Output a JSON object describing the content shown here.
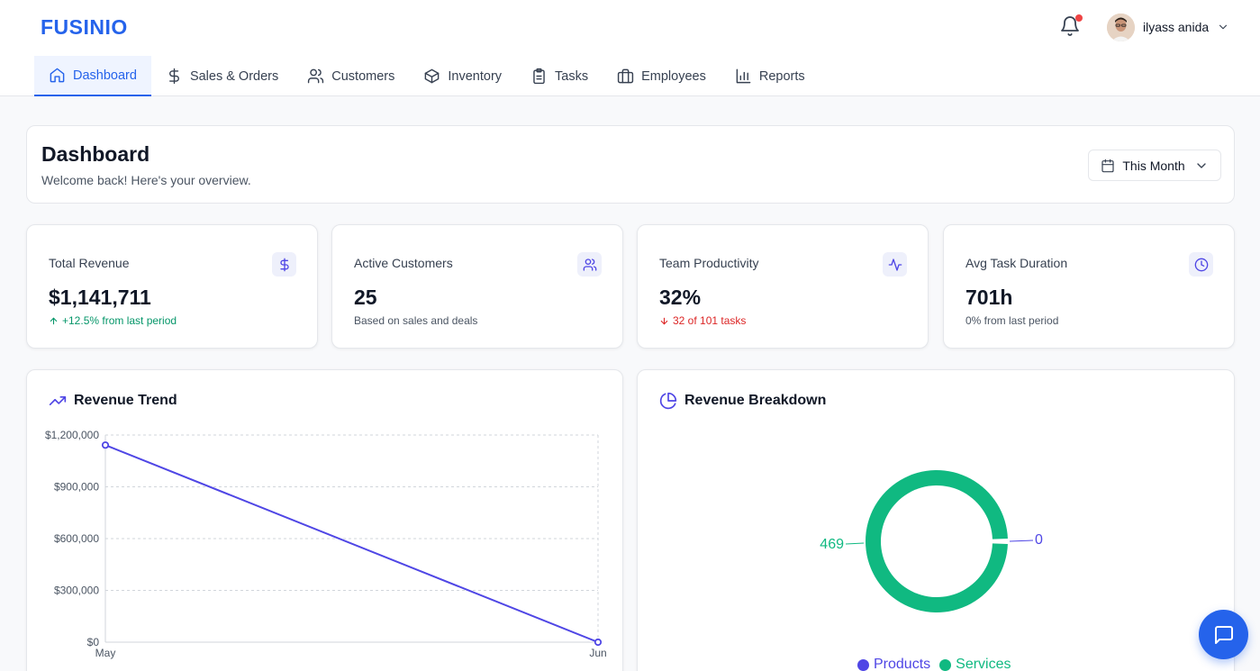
{
  "brand": "FUSINIO",
  "user": {
    "name": "ilyass anida"
  },
  "nav": [
    {
      "label": "Dashboard",
      "icon": "home-icon",
      "active": true
    },
    {
      "label": "Sales & Orders",
      "icon": "dollar-icon"
    },
    {
      "label": "Customers",
      "icon": "users-icon"
    },
    {
      "label": "Inventory",
      "icon": "box-icon"
    },
    {
      "label": "Tasks",
      "icon": "clipboard-icon"
    },
    {
      "label": "Employees",
      "icon": "briefcase-icon"
    },
    {
      "label": "Reports",
      "icon": "bar-chart-icon"
    }
  ],
  "dashboard": {
    "title": "Dashboard",
    "subtitle": "Welcome back! Here's your overview.",
    "range_label": "This Month"
  },
  "stats": [
    {
      "label": "Total Revenue",
      "value": "$1,141,711",
      "note": "+12.5% from last period",
      "trend": "up",
      "icon": "dollar-icon"
    },
    {
      "label": "Active Customers",
      "value": "25",
      "note": "Based on sales and deals",
      "trend": "none",
      "icon": "users-icon"
    },
    {
      "label": "Team Productivity",
      "value": "32%",
      "note": "32 of 101 tasks",
      "trend": "down",
      "icon": "activity-icon"
    },
    {
      "label": "Avg Task Duration",
      "value": "701h",
      "note": "0% from last period",
      "trend": "none",
      "icon": "clock-icon"
    }
  ],
  "colors": {
    "accent": "#2563eb",
    "line": "#4f46e5",
    "products": "#4f46e5",
    "services": "#10b981",
    "up": "#059669",
    "down": "#dc2626"
  },
  "chart_data": [
    {
      "type": "line",
      "title": "Revenue Trend",
      "x": [
        "May",
        "Jun"
      ],
      "series": [
        {
          "values": [
            1141711,
            0
          ]
        }
      ],
      "ylim": [
        0,
        1200000
      ],
      "yticks": [
        0,
        300000,
        600000,
        900000,
        1200000
      ],
      "ytick_labels": [
        "$0",
        "$300,000",
        "$600,000",
        "$900,000",
        "$1,200,000"
      ],
      "grid": true
    },
    {
      "type": "pie",
      "title": "Revenue Breakdown",
      "labels": [
        "Products",
        "Services"
      ],
      "values": [
        0,
        469
      ],
      "value_labels": [
        "0",
        "469"
      ],
      "donut": true,
      "legend": "bottom"
    }
  ]
}
